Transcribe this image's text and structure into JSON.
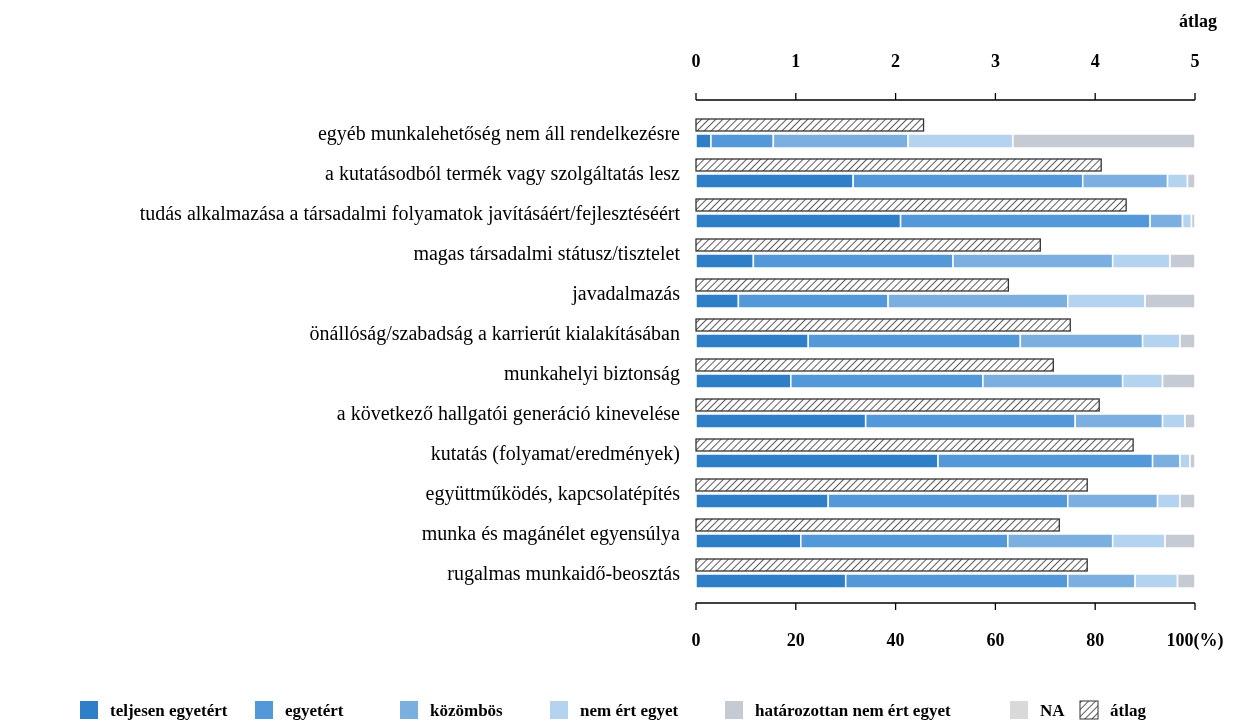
{
  "chart_data": [
    {
      "type": "bar",
      "orientation": "horizontal",
      "stacked": true,
      "categories": [
        "egyéb munkalehetőség nem áll rendelkezésre",
        "a kutatásodból termék vagy szolgáltatás lesz",
        "tudás alkalmazása a társadalmi folyamatok javításáért/fejlesztéséért",
        "magas társadalmi státusz/tisztelet",
        "javadalmazás",
        "önállóság/szabadság a karrierút kialakításában",
        "munkahelyi biztonság",
        "a következő hallgatói generáció kinevelése",
        "kutatás (folyamat/eredmények)",
        "együttműködés, kapcsolatépítés",
        "munka és magánélet egyensúlya",
        "rugalmas munkaidő-beosztás"
      ],
      "series": [
        {
          "name": "teljesen egyetért",
          "color": "#2e7ec8",
          "values": [
            3,
            31.5,
            41,
            11.5,
            8.5,
            22.5,
            19,
            34,
            48.5,
            26.5,
            21,
            30
          ]
        },
        {
          "name": "egyetért",
          "color": "#5399d9",
          "values": [
            12.5,
            46,
            50,
            40,
            30,
            42.5,
            38.5,
            42,
            43,
            48,
            41.5,
            44.5
          ]
        },
        {
          "name": "közömbös",
          "color": "#7aafdf",
          "values": [
            27,
            17,
            6.5,
            32,
            36,
            24.5,
            28,
            17.5,
            5.5,
            18,
            21,
            13.5
          ]
        },
        {
          "name": "nem ért egyet",
          "color": "#b3d3ee",
          "values": [
            21,
            4,
            1.8,
            11.5,
            15.5,
            7.5,
            8,
            4.5,
            2,
            4.5,
            10.5,
            8.5
          ]
        },
        {
          "name": "határozottan nem ért egyet",
          "color": "#c5cad3",
          "values": [
            36.5,
            1.5,
            0.7,
            5,
            10,
            3,
            6.5,
            2,
            1,
            3,
            6,
            3.5
          ]
        },
        {
          "name": "NA",
          "color": "#d9d9d9",
          "values": [
            0,
            0,
            0,
            0,
            0,
            0,
            0,
            0,
            0,
            0,
            0,
            0
          ]
        }
      ],
      "xlim": [
        0,
        100
      ],
      "xticks": [
        0,
        20,
        40,
        60,
        80,
        {
          "value": 100,
          "label": "100(%)"
        }
      ],
      "grid": false,
      "legend": "bottom"
    },
    {
      "type": "bar",
      "orientation": "horizontal",
      "categories": [
        null,
        null,
        null,
        null,
        null,
        null,
        null,
        null,
        null,
        null,
        null,
        null
      ],
      "series": [
        {
          "name": "átlag",
          "color": "#333333",
          "values": [
            2.28,
            4.06,
            4.31,
            3.45,
            3.13,
            3.75,
            3.58,
            4.04,
            4.38,
            3.92,
            3.64,
            3.92
          ]
        }
      ],
      "xlim": [
        0,
        5
      ],
      "xticks": [
        0,
        1,
        2,
        3,
        4,
        5
      ],
      "xlabel": "átlag",
      "tick_labels": "x",
      "grid": false,
      "legend": "bottom"
    }
  ]
}
